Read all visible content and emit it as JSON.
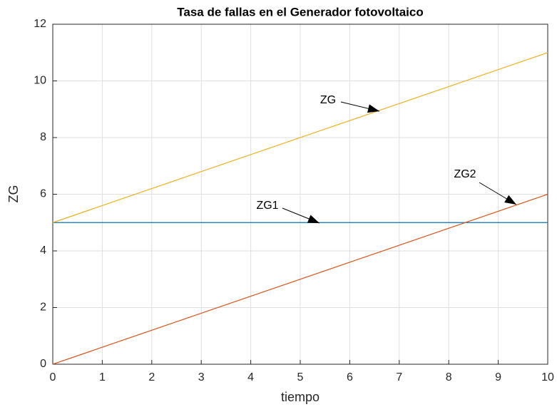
{
  "chart_data": {
    "type": "line",
    "title": "Tasa de fallas en el Generador fotovoltaico",
    "xlabel": "tiempo",
    "ylabel": "ZG",
    "x": [
      0,
      10
    ],
    "series": [
      {
        "name": "ZG1",
        "color": "#0072bd",
        "values": [
          5,
          5
        ]
      },
      {
        "name": "ZG2",
        "color": "#d95319",
        "values": [
          0,
          6
        ]
      },
      {
        "name": "ZG",
        "color": "#edb120",
        "values": [
          5,
          11
        ]
      }
    ],
    "annotations": [
      "ZG",
      "ZG1",
      "ZG2"
    ],
    "xlim": [
      0,
      10
    ],
    "xticks": [
      0,
      1,
      2,
      3,
      4,
      5,
      6,
      7,
      8,
      9,
      10
    ],
    "ylim": [
      0,
      12
    ],
    "yticks": [
      0,
      2,
      4,
      6,
      8,
      10,
      12
    ],
    "grid": true
  }
}
